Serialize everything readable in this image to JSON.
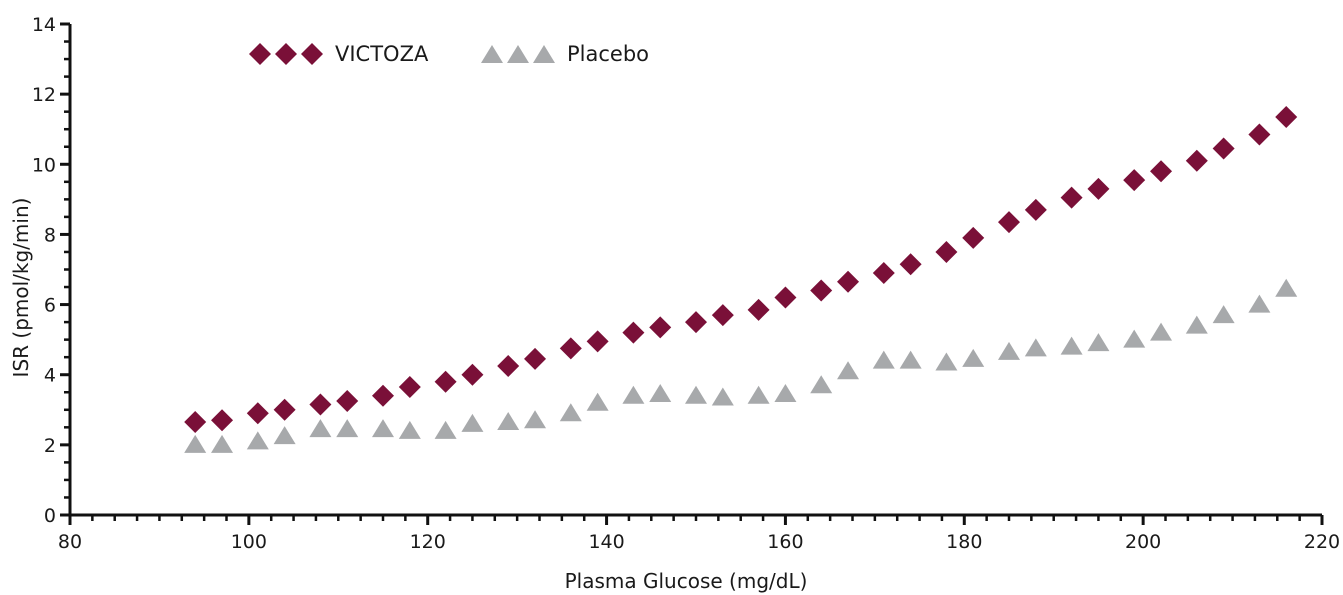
{
  "chart_data": {
    "type": "scatter",
    "xlabel": "Plasma Glucose (mg/dL)",
    "ylabel": "ISR (pmol/kg/min)",
    "xlim": [
      80,
      220
    ],
    "ylim": [
      0,
      14
    ],
    "xticks": [
      80,
      100,
      120,
      140,
      160,
      180,
      200,
      220
    ],
    "yticks": [
      0,
      2,
      4,
      6,
      8,
      10,
      12,
      14
    ],
    "grid": false,
    "legend_position": "top-left",
    "series": [
      {
        "name": "VICTOZA",
        "marker": "diamond",
        "color": "#7a1038",
        "points": [
          [
            94,
            2.65
          ],
          [
            97,
            2.7
          ],
          [
            101,
            2.9
          ],
          [
            104,
            3.0
          ],
          [
            108,
            3.15
          ],
          [
            111,
            3.25
          ],
          [
            115,
            3.4
          ],
          [
            118,
            3.65
          ],
          [
            122,
            3.8
          ],
          [
            125,
            4.0
          ],
          [
            129,
            4.25
          ],
          [
            132,
            4.45
          ],
          [
            136,
            4.75
          ],
          [
            139,
            4.95
          ],
          [
            143,
            5.2
          ],
          [
            146,
            5.35
          ],
          [
            150,
            5.5
          ],
          [
            153,
            5.7
          ],
          [
            157,
            5.85
          ],
          [
            160,
            6.2
          ],
          [
            164,
            6.4
          ],
          [
            167,
            6.65
          ],
          [
            171,
            6.9
          ],
          [
            174,
            7.15
          ],
          [
            178,
            7.5
          ],
          [
            181,
            7.9
          ],
          [
            185,
            8.35
          ],
          [
            188,
            8.7
          ],
          [
            192,
            9.05
          ],
          [
            195,
            9.3
          ],
          [
            199,
            9.55
          ],
          [
            202,
            9.8
          ],
          [
            206,
            10.1
          ],
          [
            209,
            10.45
          ],
          [
            213,
            10.85
          ],
          [
            216,
            11.35
          ]
        ]
      },
      {
        "name": "Placebo",
        "marker": "triangle",
        "color": "#a7a9ab",
        "points": [
          [
            94,
            2.0
          ],
          [
            97,
            2.0
          ],
          [
            101,
            2.1
          ],
          [
            104,
            2.25
          ],
          [
            108,
            2.45
          ],
          [
            111,
            2.45
          ],
          [
            115,
            2.45
          ],
          [
            118,
            2.4
          ],
          [
            122,
            2.4
          ],
          [
            125,
            2.6
          ],
          [
            129,
            2.65
          ],
          [
            132,
            2.7
          ],
          [
            136,
            2.9
          ],
          [
            139,
            3.2
          ],
          [
            143,
            3.4
          ],
          [
            146,
            3.45
          ],
          [
            150,
            3.4
          ],
          [
            153,
            3.35
          ],
          [
            157,
            3.4
          ],
          [
            160,
            3.45
          ],
          [
            164,
            3.7
          ],
          [
            167,
            4.1
          ],
          [
            171,
            4.4
          ],
          [
            174,
            4.4
          ],
          [
            178,
            4.35
          ],
          [
            181,
            4.45
          ],
          [
            185,
            4.65
          ],
          [
            188,
            4.75
          ],
          [
            192,
            4.8
          ],
          [
            195,
            4.9
          ],
          [
            199,
            5.0
          ],
          [
            202,
            5.2
          ],
          [
            206,
            5.4
          ],
          [
            209,
            5.7
          ],
          [
            213,
            6.0
          ],
          [
            216,
            6.45
          ]
        ]
      }
    ]
  }
}
